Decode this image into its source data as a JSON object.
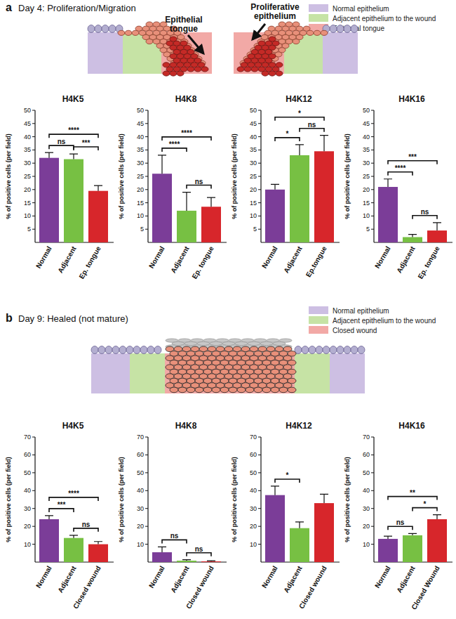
{
  "panels": [
    {
      "label": "a",
      "title": "Day 4: Proliferation/Migration",
      "legend": [
        {
          "name": "Normal epithelium",
          "color": "#cdbfe3"
        },
        {
          "name": "Adjacent epithelium to the wound",
          "color": "#c6e3a5"
        },
        {
          "name": "Epithelial tongue",
          "color": "#f2a9a6"
        }
      ],
      "diagram_labels": [
        [
          "Epithelial",
          "tongue"
        ],
        [
          "Proliferative",
          "epithelium"
        ]
      ]
    },
    {
      "label": "b",
      "title": "Day 9: Healed (not mature)",
      "legend": [
        {
          "name": "Normal epithelium",
          "color": "#cdbfe3"
        },
        {
          "name": "Adjacent epithelium to the wound",
          "color": "#c6e3a5"
        },
        {
          "name": "Closed wound",
          "color": "#f2a9a6"
        }
      ]
    }
  ],
  "chart_data": [
    {
      "type": "bar",
      "title": "H4K5",
      "y_label": "% of positive cells (per field)",
      "categories": [
        "Normal",
        "Adjacent",
        "Ep. tongue"
      ],
      "values": [
        32,
        31.5,
        19.5
      ],
      "errors": [
        2,
        2,
        2
      ],
      "colors": [
        "#7b3d98",
        "#77c043",
        "#d7262b"
      ],
      "ylim": [
        0,
        50
      ],
      "yticks": [
        5,
        10,
        15,
        20,
        25,
        30,
        35,
        40,
        45,
        50
      ],
      "annotations": [
        {
          "from": 0,
          "to": 1,
          "text": "ns"
        },
        {
          "from": 1,
          "to": 2,
          "text": "***"
        },
        {
          "from": 0,
          "to": 2,
          "text": "****"
        }
      ]
    },
    {
      "type": "bar",
      "title": "H4K8",
      "y_label": "% of positive cells (per field)",
      "categories": [
        "Normal",
        "Adjacent",
        "Ep. tongue"
      ],
      "values": [
        26,
        12,
        13.5
      ],
      "errors": [
        7,
        7,
        3.5
      ],
      "colors": [
        "#7b3d98",
        "#77c043",
        "#d7262b"
      ],
      "ylim": [
        0,
        50
      ],
      "yticks": [
        5,
        10,
        15,
        20,
        25,
        30,
        35,
        40,
        45,
        50
      ],
      "annotations": [
        {
          "from": 1,
          "to": 2,
          "text": "ns"
        },
        {
          "from": 0,
          "to": 1,
          "text": "****"
        },
        {
          "from": 0,
          "to": 2,
          "text": "****"
        }
      ]
    },
    {
      "type": "bar",
      "title": "H4K12",
      "y_label": "% of positive cells (per field)",
      "categories": [
        "Normal",
        "Adjacent",
        "Ep.tongue"
      ],
      "values": [
        20,
        33,
        34.5
      ],
      "errors": [
        2,
        4,
        6
      ],
      "colors": [
        "#7b3d98",
        "#77c043",
        "#d7262b"
      ],
      "ylim": [
        0,
        50
      ],
      "yticks": [
        5,
        10,
        15,
        20,
        25,
        30,
        35,
        40,
        45,
        50
      ],
      "annotations": [
        {
          "from": 0,
          "to": 1,
          "text": "*"
        },
        {
          "from": 1,
          "to": 2,
          "text": "ns"
        },
        {
          "from": 0,
          "to": 2,
          "text": "*"
        }
      ]
    },
    {
      "type": "bar",
      "title": "H4K16",
      "y_label": "% of positive cells (per field)",
      "categories": [
        "Normal",
        "Adjacent",
        "Ep. tongue"
      ],
      "values": [
        21,
        2,
        4.5
      ],
      "errors": [
        3,
        1,
        3
      ],
      "colors": [
        "#7b3d98",
        "#77c043",
        "#d7262b"
      ],
      "ylim": [
        0,
        50
      ],
      "yticks": [
        5,
        10,
        15,
        20,
        25,
        30,
        35,
        40,
        45,
        50
      ],
      "annotations": [
        {
          "from": 1,
          "to": 2,
          "text": "ns"
        },
        {
          "from": 0,
          "to": 1,
          "text": "****"
        },
        {
          "from": 0,
          "to": 2,
          "text": "***"
        }
      ]
    },
    {
      "type": "bar",
      "title": "H4K5",
      "y_label": "% of positive cells (per field)",
      "categories": [
        "Normal",
        "Adjacent",
        "Closed wound"
      ],
      "values": [
        24,
        13.5,
        10
      ],
      "errors": [
        2,
        1.5,
        1.5
      ],
      "colors": [
        "#7b3d98",
        "#77c043",
        "#d7262b"
      ],
      "ylim": [
        0,
        70
      ],
      "yticks": [
        10,
        20,
        30,
        40,
        50,
        60,
        70
      ],
      "annotations": [
        {
          "from": 0,
          "to": 1,
          "text": "***"
        },
        {
          "from": 1,
          "to": 2,
          "text": "ns"
        },
        {
          "from": 0,
          "to": 2,
          "text": "****"
        }
      ]
    },
    {
      "type": "bar",
      "title": "H4K8",
      "y_label": "% of positive cells (per field)",
      "categories": [
        "Normal",
        "Adjacent",
        "Closed wound"
      ],
      "values": [
        5.5,
        0.8,
        0.4
      ],
      "errors": [
        3,
        0.5,
        0.3
      ],
      "colors": [
        "#7b3d98",
        "#77c043",
        "#d7262b"
      ],
      "ylim": [
        0,
        70
      ],
      "yticks": [
        10,
        20,
        30,
        40,
        50,
        60,
        70
      ],
      "annotations": [
        {
          "from": 0,
          "to": 1,
          "text": "ns"
        },
        {
          "from": 1,
          "to": 2,
          "text": "ns"
        }
      ]
    },
    {
      "type": "bar",
      "title": "H4K12",
      "y_label": "% of positive cells (per field)",
      "categories": [
        "Normal",
        "Adjacent",
        "Closed wound"
      ],
      "values": [
        37.5,
        19,
        33
      ],
      "errors": [
        5,
        3.5,
        5
      ],
      "colors": [
        "#7b3d98",
        "#77c043",
        "#d7262b"
      ],
      "ylim": [
        0,
        70
      ],
      "yticks": [
        10,
        20,
        30,
        40,
        50,
        60,
        70
      ],
      "annotations": [
        {
          "from": 0,
          "to": 1,
          "text": "*"
        }
      ]
    },
    {
      "type": "bar",
      "title": "H4K16",
      "y_label": "% of positive cells (per field)",
      "categories": [
        "Normal",
        "Adjacent",
        "Closed Wound"
      ],
      "values": [
        13,
        15,
        24
      ],
      "errors": [
        1.5,
        1,
        2.5
      ],
      "colors": [
        "#7b3d98",
        "#77c043",
        "#d7262b"
      ],
      "ylim": [
        0,
        70
      ],
      "yticks": [
        10,
        20,
        30,
        40,
        50,
        60,
        70
      ],
      "annotations": [
        {
          "from": 0,
          "to": 1,
          "text": "ns"
        },
        {
          "from": 1,
          "to": 2,
          "text": "*"
        },
        {
          "from": 0,
          "to": 2,
          "text": "**"
        }
      ]
    }
  ]
}
